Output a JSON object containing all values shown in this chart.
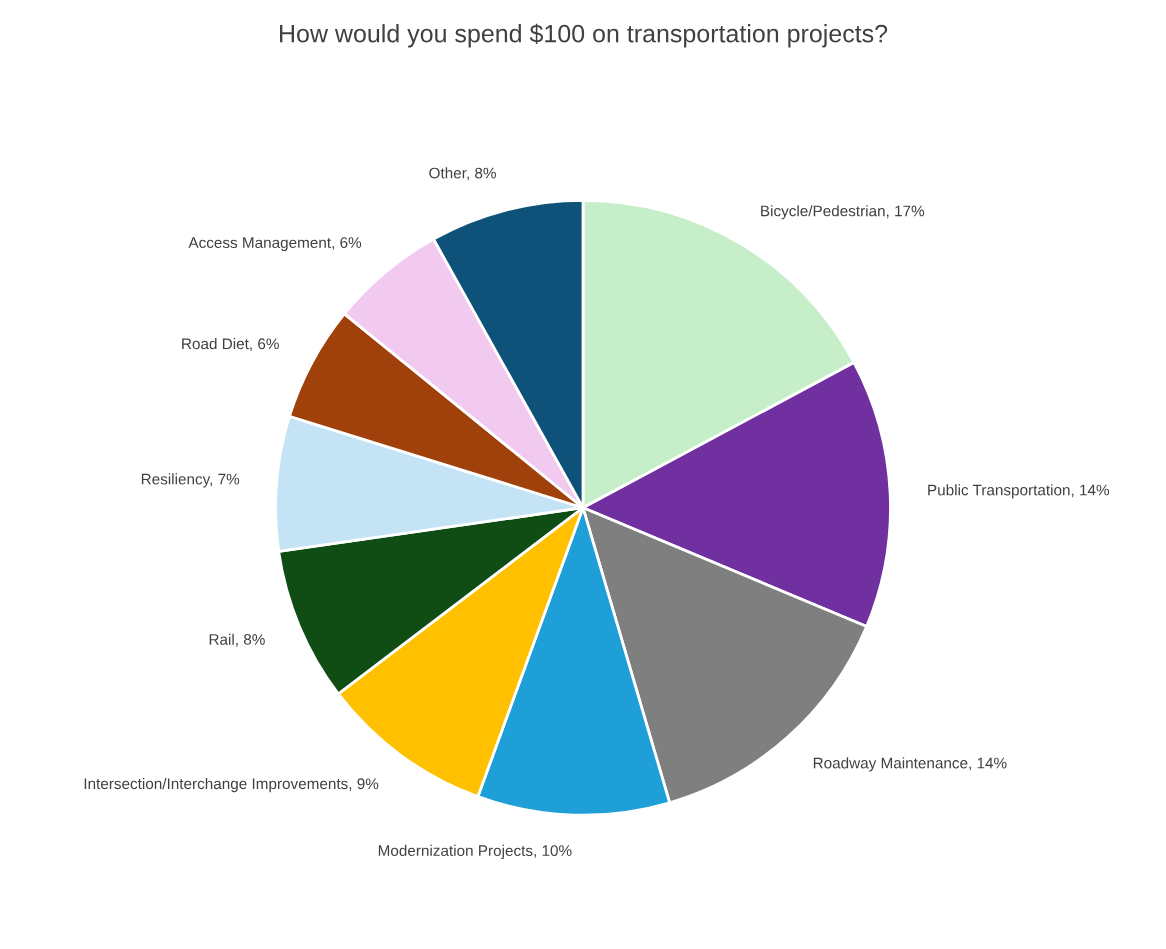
{
  "chart_data": {
    "type": "pie",
    "title": "How would you spend $100 on transportation projects?",
    "categories": [
      "Bicycle/Pedestrian",
      "Public Transportation",
      "Roadway Maintenance",
      "Modernization Projects",
      "Intersection/Interchange Improvements",
      "Rail",
      "Resiliency",
      "Road Diet",
      "Access Management",
      "Other"
    ],
    "values": [
      17,
      14,
      14,
      10,
      9,
      8,
      7,
      6,
      6,
      8
    ],
    "value_labels": [
      "17%",
      "14%",
      "14%",
      "10%",
      "9%",
      "8%",
      "7%",
      "6%",
      "6%",
      "8%"
    ],
    "colors": [
      "#c6efc9",
      "#7030a0",
      "#7f7f7f",
      "#1e9fd8",
      "#ffc000",
      "#0f4d15",
      "#c4e4f5",
      "#a0400a",
      "#f2c9ef",
      "#0e5279"
    ]
  }
}
